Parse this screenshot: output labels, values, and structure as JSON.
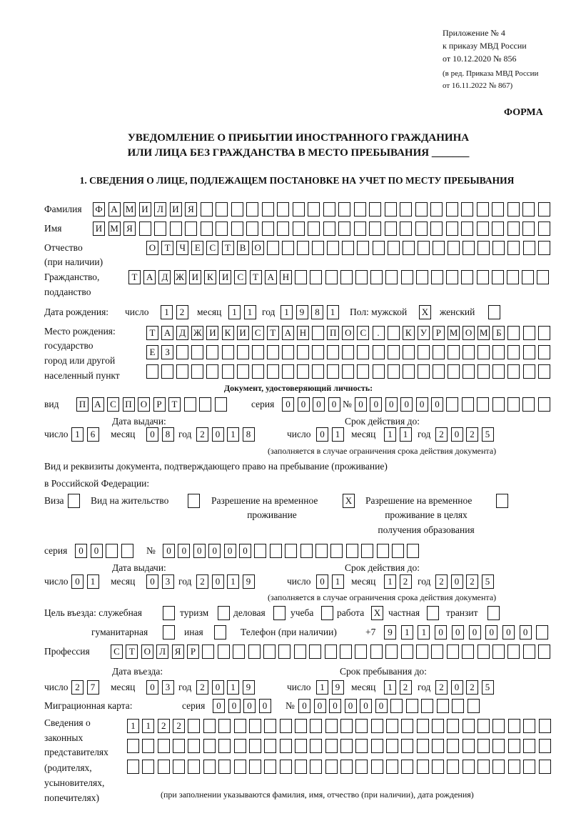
{
  "header": {
    "line1": "Приложение № 4",
    "line2": "к приказу МВД России",
    "line3": "от 10.12.2020 № 856",
    "line4": "(в ред. Приказа МВД России",
    "line5": "от 16.11.2022 № 867)",
    "forma": "ФОРМА",
    "title1": "УВЕДОМЛЕНИЕ О ПРИБЫТИИ ИНОСТРАННОГО ГРАЖДАНИНА",
    "title2": "ИЛИ ЛИЦА БЕЗ ГРАЖДАНСТВА В МЕСТО ПРЕБЫВАНИЯ _______",
    "section1": "1. СВЕДЕНИЯ О ЛИЦЕ, ПОДЛЕЖАЩЕМ ПОСТАНОВКЕ НА УЧЕТ ПО МЕСТУ ПРЕБЫВАНИЯ"
  },
  "labels": {
    "surname": "Фамилия",
    "name": "Имя",
    "patronymic": "Отчество",
    "patronymic_note": "(при наличии)",
    "citizenship1": "Гражданство,",
    "citizenship2": "подданство",
    "birth_date": "Дата рождения:",
    "day": "число",
    "month": "месяц",
    "year": "год",
    "sex": "Пол: мужской",
    "female": "женский",
    "birthplace1": "Место рождения:",
    "birthplace2": "государство",
    "birthplace3": "город или другой",
    "birthplace4": "населенный пункт",
    "id_doc": "Документ, удостоверяющий личность:",
    "kind": "вид",
    "series": "серия",
    "number": "№",
    "issue_date": "Дата выдачи:",
    "valid_until": "Срок действия до:",
    "validity_note": "(заполняется в случае ограничения срока действия документа)",
    "stay_doc1": "Вид и реквизиты документа, подтверждающего право на пребывание (проживание)",
    "stay_doc2": "в Российской Федерации:",
    "visa": "Виза",
    "residence": "Вид на жительство",
    "trp1": "Разрешение на временное",
    "trp2": "проживание",
    "trp_edu1": "Разрешение на временное",
    "trp_edu2": "проживание в целях",
    "trp_edu3": "получения образования",
    "purpose": "Цель въезда: служебная",
    "tourism": "туризм",
    "business": "деловая",
    "study": "учеба",
    "work": "работа",
    "private": "частная",
    "transit": "транзит",
    "humanitarian": "гуманитарная",
    "other": "иная",
    "phone": "Телефон (при наличии)",
    "phone_prefix": "+7",
    "profession": "Профессия",
    "entry_date": "Дата въезда:",
    "stay_until": "Срок пребывания до:",
    "migration_card": "Миграционная карта:",
    "reps1": "Сведения о",
    "reps2": "законных",
    "reps3": "представителях",
    "reps4": "(родителях,",
    "reps5": "усыновителях,",
    "reps6": "попечителях)",
    "reps_note": "(при заполнении указываются фамилия, имя, отчество (при наличии), дата рождения)"
  },
  "person": {
    "surname": "ФАМИЛИЯ",
    "name": "ИМЯ",
    "patronymic": "ОТЧЕСТВО",
    "citizenship": "ТАДЖИКИСТАН",
    "birth_day": "12",
    "birth_month": "11",
    "birth_year": "1981",
    "male": "X",
    "female": "",
    "birthplace_1": "ТАДЖИКИСТАН ПОС. КУРМОМБ",
    "birthplace_2": "ЕЗ",
    "birthplace_3": ""
  },
  "id_document": {
    "kind": "ПАСПОРТ",
    "series": "0000",
    "number": "000000",
    "issue_day": "16",
    "issue_month": "08",
    "issue_year": "2018",
    "valid_day": "01",
    "valid_month": "11",
    "valid_year": "2025"
  },
  "stay_document": {
    "visa": "",
    "residence_permit": "",
    "temporary_residence": "X",
    "temporary_residence_education": "",
    "series": "00",
    "number": "000000",
    "issue_day": "01",
    "issue_month": "03",
    "issue_year": "2019",
    "valid_day": "01",
    "valid_month": "12",
    "valid_year": "2025"
  },
  "purpose": {
    "official": "",
    "tourism": "",
    "business": "",
    "study": "",
    "work": "X",
    "private": "",
    "transit": "",
    "humanitarian": "",
    "other": ""
  },
  "phone": "911000000",
  "profession": "СТОЛЯР",
  "entry": {
    "day": "27",
    "month": "03",
    "year": "2019",
    "until_day": "19",
    "until_month": "12",
    "until_year": "2025"
  },
  "migration_card": {
    "series": "0000",
    "number": "000000"
  },
  "representatives": {
    "line1": "1122",
    "line2": "",
    "line3": ""
  }
}
